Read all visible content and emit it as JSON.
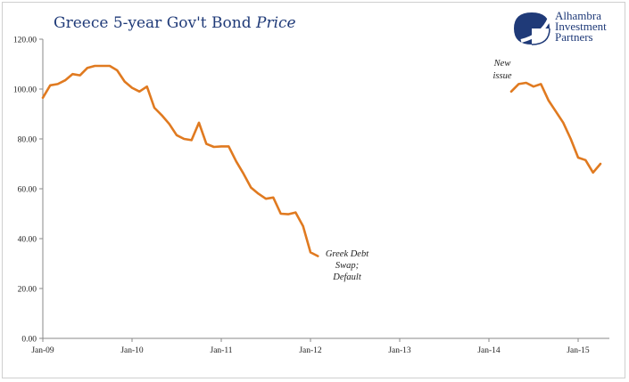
{
  "header": {
    "title_main": "Greece 5-year Gov't Bond ",
    "title_emph": "Price"
  },
  "logo": {
    "lines": [
      "Alhambra",
      "Investment",
      "Partners"
    ],
    "icon": "alhambra-logo-icon"
  },
  "colors": {
    "line": "#e07a20",
    "title": "#1f3a78",
    "axis": "#888888"
  },
  "chart_data": {
    "type": "line",
    "title": "Greece 5-year Gov't Bond Price",
    "xlabel": "",
    "ylabel": "",
    "ylim": [
      0,
      120
    ],
    "y_ticks": [
      "0.00",
      "20.00",
      "40.00",
      "60.00",
      "80.00",
      "100.00",
      "120.00"
    ],
    "x_tick_labels": [
      "Jan-09",
      "Jan-10",
      "Jan-11",
      "Jan-12",
      "Jan-13",
      "Jan-14",
      "Jan-15"
    ],
    "grid": false,
    "series": [
      {
        "segments": [
          [
            [
              "2009-01",
              96.5
            ],
            [
              "2009-02",
              101.5
            ],
            [
              "2009-03",
              102.0
            ],
            [
              "2009-04",
              103.5
            ],
            [
              "2009-05",
              106.0
            ],
            [
              "2009-06",
              105.5
            ],
            [
              "2009-07",
              108.5
            ],
            [
              "2009-08",
              109.3
            ],
            [
              "2009-09",
              109.3
            ],
            [
              "2009-10",
              109.3
            ],
            [
              "2009-11",
              107.5
            ],
            [
              "2009-12",
              103.0
            ],
            [
              "2010-01",
              100.5
            ],
            [
              "2010-02",
              99.0
            ],
            [
              "2010-03",
              101.0
            ],
            [
              "2010-04",
              92.5
            ],
            [
              "2010-05",
              89.5
            ],
            [
              "2010-06",
              86.0
            ],
            [
              "2010-07",
              81.5
            ],
            [
              "2010-08",
              80.0
            ],
            [
              "2010-09",
              79.5
            ],
            [
              "2010-10",
              86.5
            ],
            [
              "2010-11",
              78.0
            ],
            [
              "2010-12",
              76.8
            ],
            [
              "2011-01",
              77.0
            ],
            [
              "2011-02",
              77.0
            ],
            [
              "2011-03",
              71.0
            ],
            [
              "2011-04",
              66.0
            ],
            [
              "2011-05",
              60.5
            ],
            [
              "2011-06",
              58.0
            ],
            [
              "2011-07",
              56.0
            ],
            [
              "2011-08",
              56.5
            ],
            [
              "2011-09",
              50.0
            ],
            [
              "2011-10",
              49.8
            ],
            [
              "2011-11",
              50.5
            ],
            [
              "2011-12",
              45.0
            ],
            [
              "2012-01",
              34.5
            ],
            [
              "2012-02",
              33.0
            ]
          ],
          [
            [
              "2014-04",
              99.0
            ],
            [
              "2014-05",
              102.0
            ],
            [
              "2014-06",
              102.5
            ],
            [
              "2014-07",
              101.0
            ],
            [
              "2014-08",
              102.0
            ],
            [
              "2014-09",
              95.5
            ],
            [
              "2014-10",
              91.0
            ],
            [
              "2014-11",
              86.5
            ],
            [
              "2014-12",
              80.0
            ],
            [
              "2015-01",
              72.5
            ],
            [
              "2015-02",
              71.5
            ],
            [
              "2015-03",
              66.5
            ],
            [
              "2015-04",
              70.0
            ]
          ]
        ]
      }
    ],
    "annotations": [
      {
        "id": "default",
        "lines": [
          "Greek Debt",
          "Swap;",
          "Default"
        ]
      },
      {
        "id": "new-issue",
        "lines": [
          "New",
          "issue"
        ]
      }
    ]
  }
}
